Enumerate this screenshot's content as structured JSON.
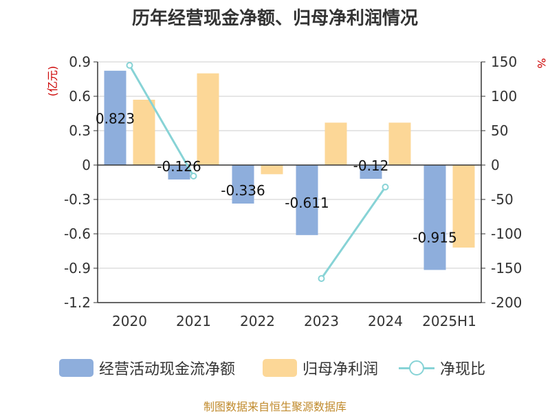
{
  "title": "历年经营现金净额、归母净利润情况",
  "left_axis_unit": "(亿元)",
  "right_axis_unit": "%",
  "legend": {
    "cash_flow": "经营活动现金流净额",
    "net_profit": "归母净利润",
    "ratio": "净现比"
  },
  "source": "制图数据来自恒生聚源数据库",
  "colors": {
    "cash_flow": "#8eaedc",
    "net_profit": "#fcd797",
    "ratio": "#87d3d6",
    "unit_label": "#cc0000"
  },
  "chart_data": {
    "type": "bar",
    "title": "历年经营现金净额、归母净利润情况",
    "categories": [
      "2020",
      "2021",
      "2022",
      "2023",
      "2024",
      "2025H1"
    ],
    "y_left": {
      "unit": "(亿元)",
      "lim": [
        -1.2,
        0.9
      ],
      "ticks": [
        0.9,
        0.6,
        0.3,
        0,
        -0.3,
        -0.6,
        -0.9,
        -1.2
      ],
      "tick_labels": [
        "0.9",
        "0.6",
        "0.3",
        "0",
        "-0.3",
        "-0.6",
        "-0.9",
        "-1.2"
      ]
    },
    "y_right": {
      "unit": "%",
      "lim": [
        -200,
        150
      ],
      "ticks": [
        150,
        100,
        50,
        0,
        -50,
        -100,
        -150,
        -200
      ],
      "tick_labels": [
        "150",
        "100",
        "50",
        "0",
        "-50",
        "-100",
        "-150",
        "-200"
      ]
    },
    "series": [
      {
        "name": "经营活动现金流净额",
        "type": "bar",
        "axis": "left",
        "values": [
          0.823,
          -0.126,
          -0.336,
          -0.611,
          -0.12,
          -0.915
        ],
        "labels": [
          "0.823",
          "-0.126",
          "-0.336",
          "-0.611",
          "-0.12",
          "-0.915"
        ]
      },
      {
        "name": "归母净利润",
        "type": "bar",
        "axis": "left",
        "values": [
          0.57,
          0.8,
          -0.08,
          0.37,
          0.37,
          -0.72
        ]
      },
      {
        "name": "净现比",
        "type": "line",
        "axis": "right",
        "segments": [
          [
            {
              "x": "2020",
              "y": 145
            },
            {
              "x": "2021",
              "y": -16
            }
          ],
          [
            {
              "x": "2023",
              "y": -165
            },
            {
              "x": "2024",
              "y": -32
            }
          ]
        ]
      }
    ],
    "grid": true,
    "legend_position": "bottom"
  }
}
